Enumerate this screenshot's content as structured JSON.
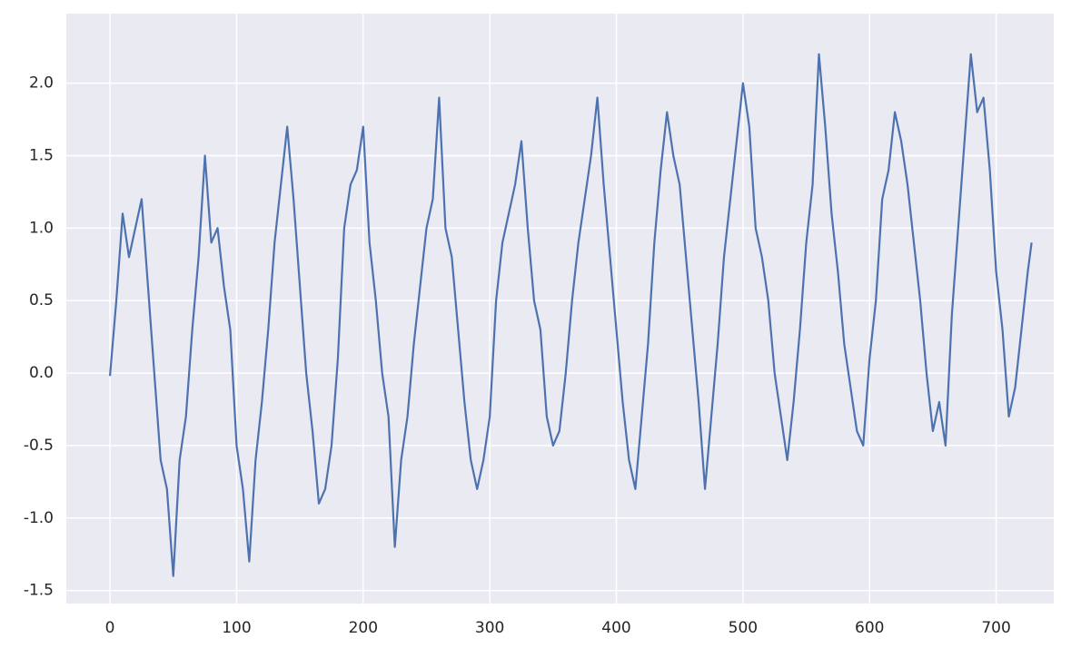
{
  "chart_data": {
    "type": "line",
    "x": [
      0,
      5,
      10,
      15,
      20,
      25,
      30,
      35,
      40,
      45,
      50,
      55,
      60,
      65,
      70,
      75,
      80,
      85,
      90,
      95,
      100,
      105,
      110,
      115,
      120,
      125,
      130,
      135,
      140,
      145,
      150,
      155,
      160,
      165,
      170,
      175,
      180,
      185,
      190,
      195,
      200,
      205,
      210,
      215,
      220,
      225,
      230,
      235,
      240,
      245,
      250,
      255,
      260,
      265,
      270,
      275,
      280,
      285,
      290,
      295,
      300,
      305,
      310,
      315,
      320,
      325,
      330,
      335,
      340,
      345,
      350,
      355,
      360,
      365,
      370,
      375,
      380,
      385,
      390,
      395,
      400,
      405,
      410,
      415,
      420,
      425,
      430,
      435,
      440,
      445,
      450,
      455,
      460,
      465,
      470,
      475,
      480,
      485,
      490,
      495,
      500,
      505,
      510,
      515,
      520,
      525,
      530,
      535,
      540,
      545,
      550,
      555,
      560,
      565,
      570,
      575,
      580,
      585,
      590,
      595,
      600,
      605,
      610,
      615,
      620,
      625,
      630,
      635,
      640,
      645,
      650,
      655,
      660,
      665,
      670,
      675,
      680,
      685,
      690,
      695,
      700,
      705,
      710,
      715,
      720,
      725,
      728
    ],
    "series": [
      {
        "color": "#4c72b0",
        "values": [
          -0.02,
          0.5,
          1.1,
          0.8,
          1.0,
          1.2,
          0.6,
          0.0,
          -0.6,
          -0.8,
          -1.4,
          -0.6,
          -0.3,
          0.3,
          0.8,
          1.5,
          0.9,
          1.0,
          0.6,
          0.3,
          -0.5,
          -0.8,
          -1.3,
          -0.6,
          -0.2,
          0.3,
          0.9,
          1.3,
          1.7,
          1.2,
          0.6,
          0.0,
          -0.4,
          -0.9,
          -0.8,
          -0.5,
          0.1,
          1.0,
          1.3,
          1.4,
          1.7,
          0.9,
          0.5,
          0.0,
          -0.3,
          -1.2,
          -0.6,
          -0.3,
          0.2,
          0.6,
          1.0,
          1.2,
          1.9,
          1.0,
          0.8,
          0.3,
          -0.2,
          -0.6,
          -0.8,
          -0.6,
          -0.3,
          0.5,
          0.9,
          1.1,
          1.3,
          1.6,
          1.0,
          0.5,
          0.3,
          -0.3,
          -0.5,
          -0.4,
          0.0,
          0.5,
          0.9,
          1.2,
          1.5,
          1.9,
          1.3,
          0.8,
          0.3,
          -0.2,
          -0.6,
          -0.8,
          -0.3,
          0.2,
          0.9,
          1.4,
          1.8,
          1.5,
          1.3,
          0.8,
          0.3,
          -0.2,
          -0.8,
          -0.3,
          0.2,
          0.8,
          1.2,
          1.6,
          2.0,
          1.7,
          1.0,
          0.8,
          0.5,
          0.0,
          -0.3,
          -0.6,
          -0.2,
          0.3,
          0.9,
          1.3,
          2.2,
          1.7,
          1.1,
          0.7,
          0.2,
          -0.1,
          -0.4,
          -0.5,
          0.1,
          0.5,
          1.2,
          1.4,
          1.8,
          1.6,
          1.3,
          0.9,
          0.5,
          0.0,
          -0.4,
          -0.2,
          -0.5,
          0.4,
          1.0,
          1.6,
          2.2,
          1.8,
          1.9,
          1.4,
          0.7,
          0.3,
          -0.3,
          -0.1,
          0.3,
          0.7,
          0.9
        ]
      }
    ],
    "xlim": [
      -34.5,
      745.5
    ],
    "ylim": [
      -1.59,
      2.48
    ],
    "xticks": [
      0,
      100,
      200,
      300,
      400,
      500,
      600,
      700
    ],
    "yticks": [
      -1.5,
      {
        "value": -1.0,
        "label": "-1.0"
      },
      -0.5,
      {
        "value": 0.0,
        "label": "0.0"
      },
      0.5,
      {
        "value": 1.0,
        "label": "1.0"
      },
      1.5,
      {
        "value": 2.0,
        "label": "2.0"
      }
    ],
    "grid": true
  }
}
